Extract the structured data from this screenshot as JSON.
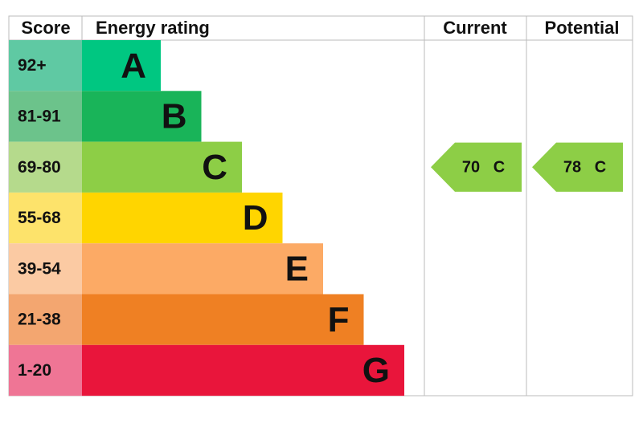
{
  "header": {
    "score": "Score",
    "rating": "Energy rating",
    "current": "Current",
    "potential": "Potential"
  },
  "rows": [
    {
      "score": "92+",
      "band": "A",
      "color": "#00c781",
      "score_color": "#5fc9a3"
    },
    {
      "score": "81-91",
      "band": "B",
      "color": "#19b459",
      "score_color": "#6cc38b"
    },
    {
      "score": "69-80",
      "band": "C",
      "color": "#8dce46",
      "score_color": "#b5da8c"
    },
    {
      "score": "55-68",
      "band": "D",
      "color": "#ffd500",
      "score_color": "#fde36b"
    },
    {
      "score": "39-54",
      "band": "E",
      "color": "#fcaa65",
      "score_color": "#fbcaa3"
    },
    {
      "score": "21-38",
      "band": "F",
      "color": "#ef8023",
      "score_color": "#f3a670"
    },
    {
      "score": "1-20",
      "band": "G",
      "color": "#e9153b",
      "score_color": "#ef7595"
    }
  ],
  "current": {
    "value": 70,
    "band": "C"
  },
  "potential": {
    "value": 78,
    "band": "C"
  }
}
